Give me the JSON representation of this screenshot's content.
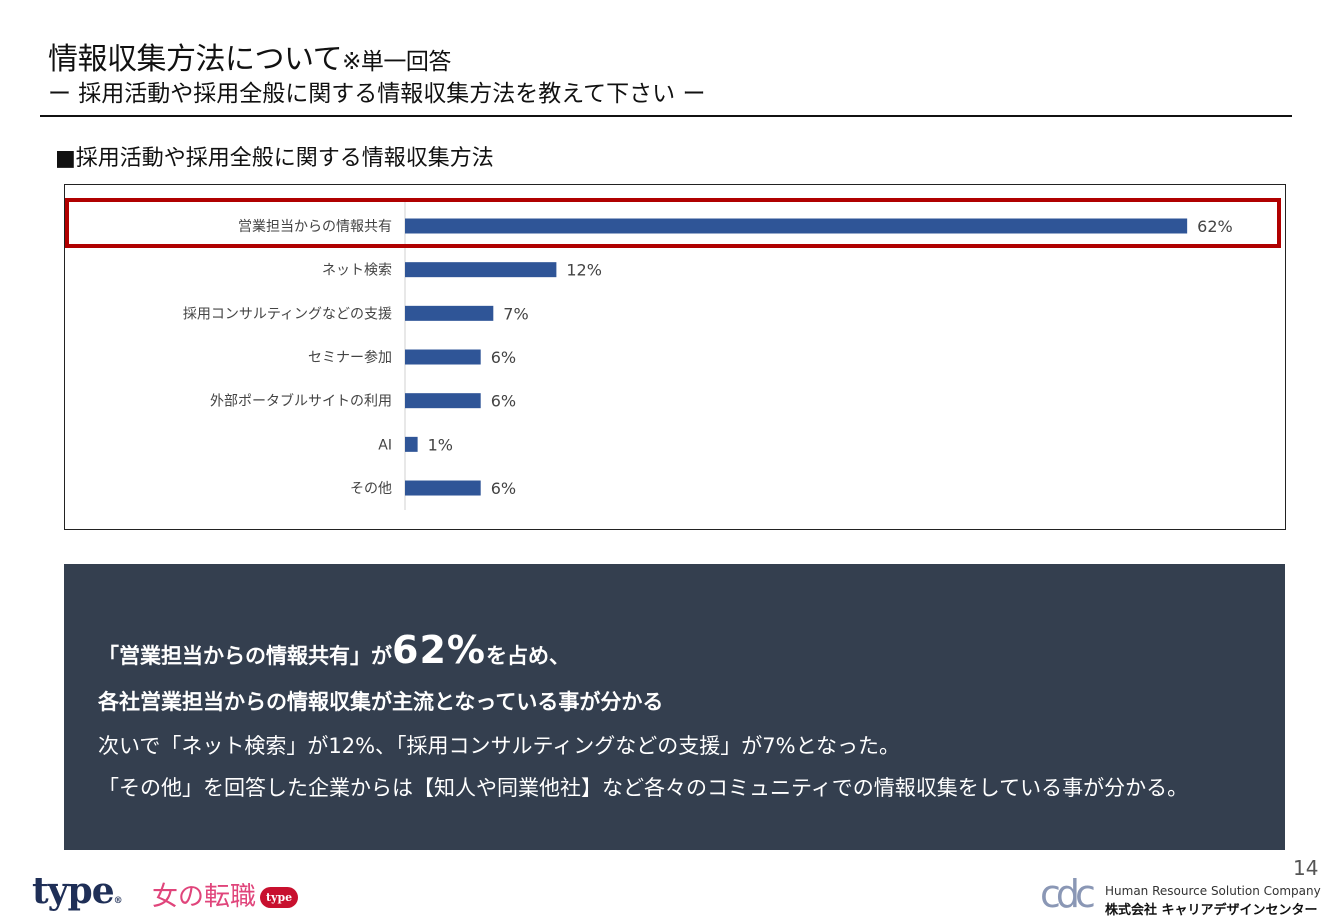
{
  "header": {
    "title": "情報収集方法について",
    "title_note": "※単一回答",
    "subtitle": "ー 採用活動や採用全般に関する情報収集方法を教えて下さい ー"
  },
  "section": {
    "heading": "■採用活動や採用全般に関する情報収集方法"
  },
  "colors": {
    "bar": "#2f5597",
    "highlight": "#b00000",
    "summary_bg": "#343f4f"
  },
  "chart_data": {
    "type": "bar",
    "orientation": "horizontal",
    "categories": [
      "営業担当からの情報共有",
      "ネット検索",
      "採用コンサルティングなどの支援",
      "セミナー参加",
      "外部ポータブルサイトの利用",
      "AI",
      "その他"
    ],
    "values": [
      62,
      12,
      7,
      6,
      6,
      1,
      6
    ],
    "value_labels": [
      "62%",
      "12%",
      "7%",
      "6%",
      "6%",
      "1%",
      "6%"
    ],
    "unit": "%",
    "xlim": [
      0,
      65
    ],
    "grid": false,
    "highlighted_category": "営業担当からの情報共有"
  },
  "summary": {
    "line1_pre": "「営業担当からの情報共有」が",
    "line1_value": "62%",
    "line1_post": "を占め、",
    "line2": "各社営業担当からの情報収集が主流となっている事が分かる",
    "line3": "次いで「ネット検索」が12%、「採用コンサルティングなどの支援」が7%となった。",
    "line4": "「その他」を回答した企業からは【知人や同業他社】など各々のコミュニティでの情報収集をしている事が分かる。"
  },
  "footer": {
    "page_number": "14",
    "logo_type": "type",
    "logo_type_mark": "®",
    "logo_woman": "女の転職",
    "logo_woman_badge": "type",
    "logo_cdc": "cdc",
    "company_en": "Human Resource Solution Company",
    "company_jp": "株式会社 キャリアデザインセンター"
  }
}
